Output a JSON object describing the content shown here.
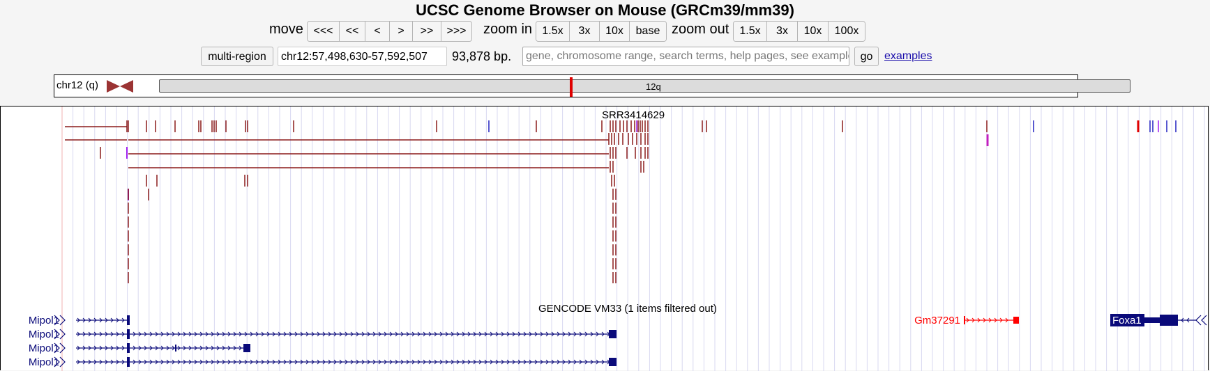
{
  "header": {
    "title": "UCSC Genome Browser on Mouse (GRCm39/mm39)"
  },
  "nav": {
    "move_label": "move",
    "move_buttons": [
      "<<<",
      "<<",
      "<",
      ">",
      ">>",
      ">>>"
    ],
    "zoom_in_label": "zoom in",
    "zoom_in_buttons": [
      "1.5x",
      "3x",
      "10x",
      "base"
    ],
    "zoom_out_label": "zoom out",
    "zoom_out_buttons": [
      "1.5x",
      "3x",
      "10x",
      "100x"
    ]
  },
  "position": {
    "multi_region_label": "multi-region",
    "range": "chr12:57,498,630-57,592,507",
    "size": "93,878 bp.",
    "search_placeholder": "gene, chromosome range, search terms, help pages, see examples",
    "go_label": "go",
    "examples_label": "examples"
  },
  "ideogram": {
    "chrom_label": "chr12 (q)",
    "band_label": "12q",
    "highlight_color": "#e00000"
  },
  "tracks": {
    "srr_label": "SRR3414629",
    "gencode_label": "GENCODE VM33 (1 items filtered out)",
    "genes": [
      {
        "name": "Mipol1",
        "color": "#0a0a7a"
      },
      {
        "name": "Mipol1",
        "color": "#0a0a7a"
      },
      {
        "name": "Mipol1",
        "color": "#0a0a7a"
      },
      {
        "name": "Mipol1",
        "color": "#0a0a7a"
      },
      {
        "name": "Gm37291",
        "color": "#ff0000"
      },
      {
        "name": "Foxa1",
        "color": "#0a0a7a"
      }
    ],
    "colors": {
      "junction": "#8b1a1a",
      "purple": "#a020f0",
      "blue": "#2020c0",
      "grid": "#d8d8f0"
    }
  }
}
